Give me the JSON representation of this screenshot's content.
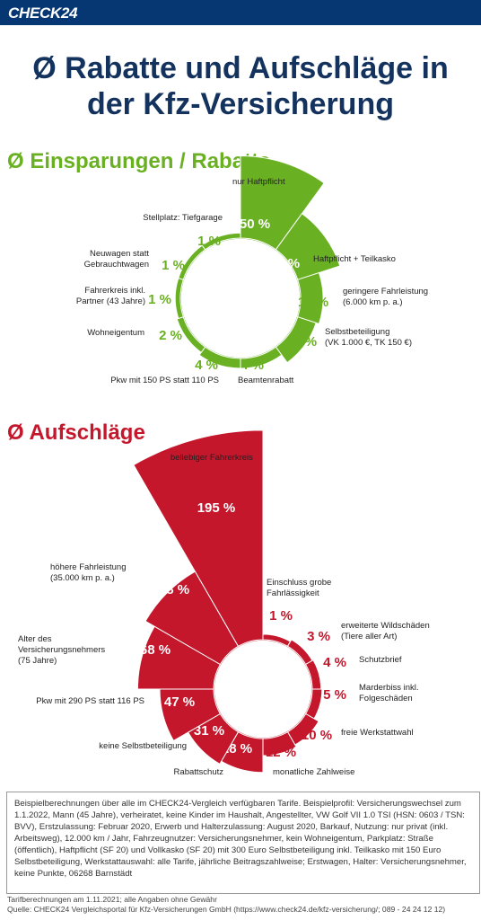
{
  "brand": {
    "logo_text": "CHECK24",
    "bar_color": "#063773"
  },
  "title": {
    "line1": "Ø Rabatte und Aufschläge in",
    "line2": "der Kfz-Versicherung"
  },
  "chart_data": [
    {
      "type": "pie",
      "title": "Ø Einsparungen / Rabatte",
      "color": "#6ab023",
      "unit": "%",
      "slices": [
        {
          "label": "nur Haftpflicht",
          "value": 50,
          "value_label": "50 %"
        },
        {
          "label": "Haftpflicht + Teilkasko",
          "value": 26,
          "value_label": "26 %"
        },
        {
          "label": "geringere Fahrleistung (6.000 km p. a.)",
          "value": 12,
          "value_label": "12 %"
        },
        {
          "label": "Selbstbeteiligung (VK 1.000 €, TK 150 €)",
          "value": 10,
          "value_label": "10 %"
        },
        {
          "label": "Beamtenrabatt",
          "value": 4,
          "value_label": "4 %"
        },
        {
          "label": "Pkw mit 150 PS statt 110 PS",
          "value": 4,
          "value_label": "4 %"
        },
        {
          "label": "Wohneigentum",
          "value": 2,
          "value_label": "2 %"
        },
        {
          "label": "Fahrerkreis inkl. Partner (43 Jahre)",
          "value": 1,
          "value_label": "1 %"
        },
        {
          "label": "Neuwagen statt Gebrauchtwagen",
          "value": 1,
          "value_label": "1 %"
        },
        {
          "label": "Stellplatz: Tiefgarage",
          "value": 1,
          "value_label": "1 %"
        }
      ]
    },
    {
      "type": "pie",
      "title": "Ø Aufschläge",
      "color": "#c4172c",
      "unit": "%",
      "slices": [
        {
          "label": "Einschluss grobe Fahrlässigkeit",
          "value": 1,
          "value_label": "1 %"
        },
        {
          "label": "erweiterte Wildschäden (Tiere aller Art)",
          "value": 3,
          "value_label": "3 %"
        },
        {
          "label": "Schutzbrief",
          "value": 4,
          "value_label": "4 %"
        },
        {
          "label": "Marderbiss inkl. Folgeschäden",
          "value": 5,
          "value_label": "5 %"
        },
        {
          "label": "freie Werkstattwahl",
          "value": 10,
          "value_label": "10 %"
        },
        {
          "label": "monatliche Zahlweise",
          "value": 12,
          "value_label": "12 %"
        },
        {
          "label": "Rabattschutz",
          "value": 28,
          "value_label": "28 %"
        },
        {
          "label": "keine Selbstbeteiligung",
          "value": 31,
          "value_label": "31 %"
        },
        {
          "label": "Pkw mit 290 PS statt 116 PS",
          "value": 47,
          "value_label": "47 %"
        },
        {
          "label": "Alter des Versicherungsnehmers (75 Jahre)",
          "value": 68,
          "value_label": "68 %"
        },
        {
          "label": "höhere Fahrleistung (35.000 km p. a.)",
          "value": 78,
          "value_label": "78 %"
        },
        {
          "label": "beliebiger Fahrerkreis",
          "value": 195,
          "value_label": "195 %"
        }
      ]
    }
  ],
  "label_lines": {
    "g0": [
      "nur Haftpflicht"
    ],
    "g1": [
      "Haftpflicht + Teilkasko"
    ],
    "g2": [
      "geringere Fahrleistung",
      "(6.000 km p. a.)"
    ],
    "g3": [
      "Selbstbeteiligung",
      "(VK 1.000 €, TK 150 €)"
    ],
    "g4": [
      "Beamtenrabatt"
    ],
    "g5": [
      "Pkw mit 150 PS statt 110 PS"
    ],
    "g6": [
      "Wohneigentum"
    ],
    "g7": [
      "Fahrerkreis inkl.",
      "Partner (43 Jahre)"
    ],
    "g8": [
      "Neuwagen statt",
      "Gebrauchtwagen"
    ],
    "g9": [
      "Stellplatz: Tiefgarage"
    ],
    "r0": [
      "Einschluss grobe",
      "Fahrlässigkeit"
    ],
    "r1": [
      "erweiterte Wildschäden",
      "(Tiere aller Art)"
    ],
    "r2": [
      "Schutzbrief"
    ],
    "r3": [
      "Marderbiss inkl.",
      "Folgeschäden"
    ],
    "r4": [
      "freie Werkstattwahl"
    ],
    "r5": [
      "monatliche Zahlweise"
    ],
    "r6": [
      "Rabattschutz"
    ],
    "r7": [
      "keine Selbstbeteiligung"
    ],
    "r8": [
      "Pkw mit 290 PS statt 116 PS"
    ],
    "r9": [
      "Alter des",
      "Versicherungsnehmers",
      "(75 Jahre)"
    ],
    "r10": [
      "höhere Fahrleistung",
      "(35.000 km p. a.)"
    ],
    "r11": [
      "beliebiger Fahrerkreis"
    ]
  },
  "infobox": "Beispielberechnungen über alle im CHECK24-Vergleich verfügbaren Tarife. Beispielprofil: Versicherungswechsel zum 1.1.2022, Mann (45 Jahre), verheiratet, keine Kinder im Haushalt, Angestellter, VW Golf VII 1.0 TSI (HSN: 0603 / TSN: BVV), Erstzulassung: Februar 2020, Erwerb und Halterzulassung: August 2020, Barkauf, Nutzung: nur privat (inkl. Arbeitsweg), 12.000 km / Jahr, Fahrzeugnutzer: Versicherungsnehmer, kein Wohneigentum, Parkplatz: Straße (öffentlich), Haftpflicht (SF 20) und Vollkasko (SF 20) mit 300 Euro Selbstbeteiligung inkl. Teilkasko mit 150 Euro Selbstbeteiligung, Werkstattauswahl: alle Tarife, jährliche Beitragszahlweise; Erstwagen, Halter: Versicherungsnehmer, keine Punkte, 06268 Barnstädt",
  "footer": {
    "line1": "Tarifberechnungen am 1.11.2021; alle Angaben ohne Gewähr",
    "line2": "Quelle: CHECK24 Vergleichsportal für Kfz-Versicherungen GmbH (https://www.check24.de/kfz-versicherung/; 089 - 24 24 12 12)"
  }
}
